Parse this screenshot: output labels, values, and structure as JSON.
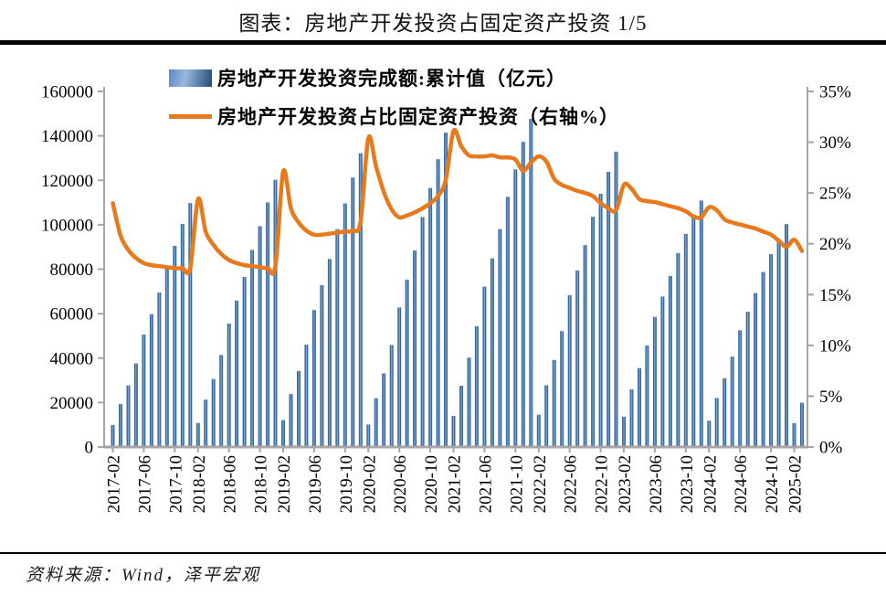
{
  "header": {
    "title": "图表：房地产开发投资占固定资产投资 1/5"
  },
  "footer": {
    "source": "资料来源：Wind，泽平宏观"
  },
  "legend": [
    {
      "label": "房地产开发投资完成额:累计值（亿元）",
      "type": "bar"
    },
    {
      "label": "房地产开发投资占比固定资产投资（右轴%）",
      "type": "line"
    }
  ],
  "colors": {
    "bar_edge": "#39699f",
    "bar_center": "#92b9e0",
    "bar_legend_left": "#5a8ac6",
    "bar_legend_mid": "#9ab8dc",
    "bar_legend_right": "#1f4e79",
    "line": "#e87a1e",
    "axis": "#a6a6a6",
    "text": "#000000"
  },
  "chart_data": {
    "type": "bar",
    "subtype": "dual-axis bar + line",
    "title": "图表：房地产开发投资占固定资产投资 1/5",
    "xlabel": "",
    "ylabel_left": "亿元",
    "ylabel_right": "%",
    "grid": false,
    "legend_position": "top-left",
    "months": [
      "2017-02",
      "2017-03",
      "2017-04",
      "2017-05",
      "2017-06",
      "2017-07",
      "2017-08",
      "2017-09",
      "2017-10",
      "2017-11",
      "2017-12",
      "2018-02",
      "2018-03",
      "2018-04",
      "2018-05",
      "2018-06",
      "2018-07",
      "2018-08",
      "2018-09",
      "2018-10",
      "2018-11",
      "2018-12",
      "2019-02",
      "2019-03",
      "2019-04",
      "2019-05",
      "2019-06",
      "2019-07",
      "2019-08",
      "2019-09",
      "2019-10",
      "2019-11",
      "2019-12",
      "2020-02",
      "2020-03",
      "2020-04",
      "2020-05",
      "2020-06",
      "2020-07",
      "2020-08",
      "2020-09",
      "2020-10",
      "2020-11",
      "2020-12",
      "2021-02",
      "2021-03",
      "2021-04",
      "2021-05",
      "2021-06",
      "2021-07",
      "2021-08",
      "2021-09",
      "2021-10",
      "2021-11",
      "2021-12",
      "2022-02",
      "2022-03",
      "2022-04",
      "2022-05",
      "2022-06",
      "2022-07",
      "2022-08",
      "2022-09",
      "2022-10",
      "2022-11",
      "2022-12",
      "2023-02",
      "2023-03",
      "2023-04",
      "2023-05",
      "2023-06",
      "2023-07",
      "2023-08",
      "2023-09",
      "2023-10",
      "2023-11",
      "2023-12",
      "2024-02",
      "2024-03",
      "2024-04",
      "2024-05",
      "2024-06",
      "2024-07",
      "2024-08",
      "2024-09",
      "2024-10",
      "2024-11",
      "2024-12",
      "2025-02",
      "2025-03"
    ],
    "series": [
      {
        "name": "房地产开发投资完成额:累计值（亿元）",
        "type": "bar",
        "axis": "left",
        "values": [
          9854,
          19292,
          27732,
          37595,
          50610,
          59761,
          69494,
          80644,
          90544,
          100387,
          109799,
          10831,
          21291,
          30592,
          41420,
          55531,
          65886,
          76519,
          88665,
          99325,
          110083,
          120264,
          12090,
          23803,
          34217,
          46075,
          61609,
          72843,
          84589,
          98008,
          109603,
          121265,
          132194,
          10115,
          21963,
          33103,
          45920,
          62780,
          75325,
          88454,
          103484,
          116556,
          129492,
          141443,
          13986,
          27576,
          40240,
          54318,
          72179,
          84895,
          98060,
          112568,
          124934,
          137314,
          147602,
          14499,
          27765,
          39154,
          52134,
          68314,
          79462,
          90809,
          103559,
          113945,
          123863,
          132895,
          13669,
          25974,
          35514,
          45701,
          58550,
          67717,
          76900,
          87269,
          95922,
          104045,
          110913,
          11842,
          22082,
          30929,
          40632,
          52529,
          60877,
          69284,
          78731,
          86806,
          93634,
          100280,
          10720,
          19904
        ]
      },
      {
        "name": "房地产开发投资占比固定资产投资（右轴%）",
        "type": "line",
        "axis": "right",
        "values": [
          24.0,
          20.8,
          19.4,
          18.6,
          18.1,
          17.9,
          17.8,
          17.7,
          17.6,
          17.6,
          17.6,
          24.4,
          21.2,
          19.9,
          19.0,
          18.4,
          18.1,
          17.9,
          17.8,
          17.7,
          17.6,
          17.8,
          27.1,
          23.5,
          22.1,
          21.3,
          20.9,
          20.9,
          21.0,
          21.1,
          21.2,
          21.3,
          22.2,
          30.4,
          27.6,
          25.1,
          23.4,
          22.6,
          22.8,
          23.1,
          23.5,
          24.0,
          24.7,
          26.3,
          31.1,
          29.6,
          28.7,
          28.6,
          28.6,
          28.7,
          28.5,
          28.5,
          28.3,
          27.2,
          28.0,
          28.6,
          28.1,
          26.4,
          25.8,
          25.5,
          25.2,
          25.0,
          24.7,
          24.0,
          23.5,
          23.3,
          25.8,
          25.4,
          24.4,
          24.2,
          24.1,
          23.9,
          23.7,
          23.5,
          23.2,
          22.7,
          22.6,
          23.6,
          23.3,
          22.4,
          22.1,
          21.9,
          21.7,
          21.5,
          21.2,
          20.9,
          20.3,
          19.7,
          20.4,
          19.3
        ]
      }
    ],
    "left_axis": {
      "min": 0,
      "max": 160000,
      "step": 20000,
      "tick_labels": [
        "0",
        "20000",
        "40000",
        "60000",
        "80000",
        "100000",
        "120000",
        "140000",
        "160000"
      ]
    },
    "right_axis": {
      "min": 0,
      "max": 35,
      "step": 5,
      "tick_labels": [
        "0%",
        "5%",
        "10%",
        "15%",
        "20%",
        "25%",
        "30%",
        "35%"
      ]
    },
    "x_tick_labels": [
      "2017-02",
      "2017-06",
      "2017-10",
      "2018-02",
      "2018-06",
      "2018-10",
      "2019-02",
      "2019-06",
      "2019-10",
      "2020-02",
      "2020-06",
      "2020-10",
      "2021-02",
      "2021-06",
      "2021-10",
      "2022-02",
      "2022-06",
      "2022-10",
      "2023-02",
      "2023-06",
      "2023-10",
      "2024-02",
      "2024-06",
      "2024-10",
      "2025-02"
    ]
  }
}
